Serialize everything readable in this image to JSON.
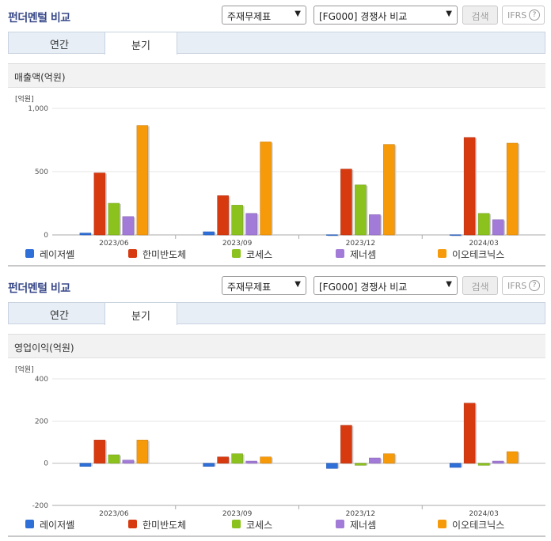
{
  "header": {
    "title": "펀더멘털 비교",
    "select_statement": "주재무제표",
    "select_compare": "[FG000] 경쟁사 비교",
    "search_label": "검색",
    "ifrs_label": "IFRS",
    "help_glyph": "?"
  },
  "tabs": [
    {
      "label": "연간",
      "selected": false
    },
    {
      "label": "분기",
      "selected": true
    }
  ],
  "colors": {
    "레이저쎌": "#2e6fd8",
    "한미반도체": "#d83a10",
    "코세스": "#8cc21e",
    "제너셈": "#a27ad8",
    "이오테크닉스": "#f79a0a"
  },
  "chart_data": [
    {
      "type": "bar",
      "title": "매출액(억원)",
      "unit": "[억원]",
      "categories": [
        "2023/06",
        "2023/09",
        "2023/12",
        "2024/03"
      ],
      "ylim": [
        0,
        1000
      ],
      "yticks": [
        0,
        500,
        1000
      ],
      "ytick_labels": [
        "0",
        "500",
        "1,000"
      ],
      "grid": true,
      "legend_position": "bottom",
      "series": [
        {
          "name": "레이저쎌",
          "values": [
            15,
            25,
            2,
            2
          ]
        },
        {
          "name": "한미반도체",
          "values": [
            490,
            310,
            520,
            770
          ]
        },
        {
          "name": "코세스",
          "values": [
            250,
            235,
            395,
            170
          ]
        },
        {
          "name": "제너셈",
          "values": [
            145,
            170,
            160,
            120
          ]
        },
        {
          "name": "이오테크닉스",
          "values": [
            865,
            735,
            715,
            725
          ]
        }
      ]
    },
    {
      "type": "bar",
      "title": "영업이익(억원)",
      "unit": "[억원]",
      "categories": [
        "2023/06",
        "2023/09",
        "2023/12",
        "2024/03"
      ],
      "ylim": [
        -200,
        400
      ],
      "yticks": [
        -200,
        0,
        200,
        400
      ],
      "ytick_labels": [
        "-200",
        "0",
        "200",
        "400"
      ],
      "grid": true,
      "legend_position": "bottom",
      "series": [
        {
          "name": "레이저쎌",
          "values": [
            -15,
            -15,
            -25,
            -20
          ]
        },
        {
          "name": "한미반도체",
          "values": [
            110,
            30,
            180,
            285
          ]
        },
        {
          "name": "코세스",
          "values": [
            40,
            45,
            -10,
            -10
          ]
        },
        {
          "name": "제너셈",
          "values": [
            15,
            10,
            25,
            10
          ]
        },
        {
          "name": "이오테크닉스",
          "values": [
            110,
            30,
            45,
            55
          ]
        }
      ]
    }
  ]
}
